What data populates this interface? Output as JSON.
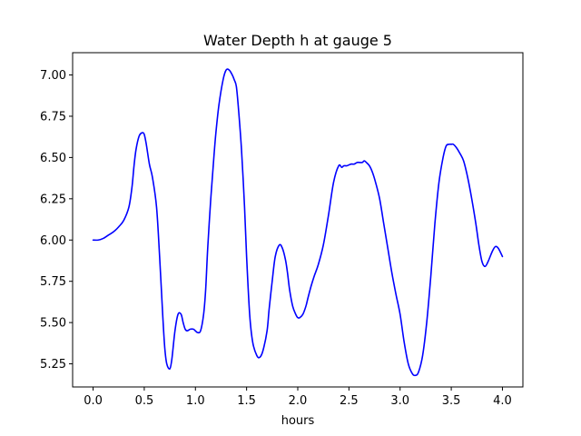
{
  "chart_data": {
    "type": "line",
    "title": "Water Depth h at gauge 5",
    "xlabel": "hours",
    "ylabel": "",
    "xlim": [
      -0.2,
      4.2
    ],
    "ylim": [
      5.11,
      7.135
    ],
    "xticks": [
      0.0,
      0.5,
      1.0,
      1.5,
      2.0,
      2.5,
      3.0,
      3.5,
      4.0
    ],
    "xtick_labels": [
      "0.0",
      "0.5",
      "1.0",
      "1.5",
      "2.0",
      "2.5",
      "3.0",
      "3.5",
      "4.0"
    ],
    "yticks": [
      5.25,
      5.5,
      5.75,
      6.0,
      6.25,
      6.5,
      6.75,
      7.0
    ],
    "ytick_labels": [
      "5.25",
      "5.50",
      "5.75",
      "6.00",
      "6.25",
      "6.50",
      "6.75",
      "7.00"
    ],
    "grid": false,
    "legend": "none",
    "series": [
      {
        "color": "#0000ff",
        "x": [
          0.0,
          0.05,
          0.1,
          0.15,
          0.2,
          0.25,
          0.3,
          0.35,
          0.38,
          0.4,
          0.42,
          0.45,
          0.48,
          0.5,
          0.52,
          0.55,
          0.58,
          0.62,
          0.65,
          0.68,
          0.7,
          0.72,
          0.75,
          0.77,
          0.8,
          0.83,
          0.86,
          0.88,
          0.9,
          0.92,
          0.95,
          0.98,
          1.0,
          1.02,
          1.05,
          1.08,
          1.1,
          1.12,
          1.15,
          1.18,
          1.2,
          1.23,
          1.27,
          1.3,
          1.33,
          1.36,
          1.38,
          1.4,
          1.42,
          1.45,
          1.48,
          1.5,
          1.53,
          1.56,
          1.6,
          1.63,
          1.66,
          1.7,
          1.72,
          1.75,
          1.78,
          1.82,
          1.85,
          1.88,
          1.9,
          1.92,
          1.95,
          1.98,
          2.0,
          2.02,
          2.05,
          2.08,
          2.1,
          2.13,
          2.16,
          2.2,
          2.25,
          2.3,
          2.35,
          2.4,
          2.43,
          2.45,
          2.48,
          2.52,
          2.55,
          2.58,
          2.6,
          2.63,
          2.65,
          2.67,
          2.7,
          2.73,
          2.76,
          2.8,
          2.84,
          2.88,
          2.92,
          2.96,
          3.0,
          3.04,
          3.08,
          3.12,
          3.15,
          3.18,
          3.22,
          3.26,
          3.3,
          3.34,
          3.38,
          3.42,
          3.45,
          3.48,
          3.5,
          3.52,
          3.55,
          3.58,
          3.62,
          3.66,
          3.7,
          3.74,
          3.77,
          3.8,
          3.83,
          3.86,
          3.9,
          3.93,
          3.96,
          4.0
        ],
        "y": [
          6.0,
          6.0,
          6.01,
          6.03,
          6.05,
          6.08,
          6.12,
          6.2,
          6.32,
          6.45,
          6.55,
          6.63,
          6.65,
          6.64,
          6.58,
          6.46,
          6.38,
          6.2,
          5.9,
          5.55,
          5.35,
          5.25,
          5.22,
          5.28,
          5.45,
          5.55,
          5.55,
          5.5,
          5.46,
          5.45,
          5.46,
          5.46,
          5.45,
          5.44,
          5.45,
          5.55,
          5.7,
          5.95,
          6.25,
          6.5,
          6.65,
          6.82,
          6.97,
          7.03,
          7.03,
          7.0,
          6.97,
          6.93,
          6.8,
          6.55,
          6.2,
          5.9,
          5.55,
          5.38,
          5.3,
          5.29,
          5.33,
          5.45,
          5.58,
          5.75,
          5.9,
          5.97,
          5.95,
          5.88,
          5.8,
          5.7,
          5.6,
          5.55,
          5.53,
          5.53,
          5.55,
          5.6,
          5.65,
          5.72,
          5.78,
          5.85,
          5.97,
          6.15,
          6.35,
          6.45,
          6.44,
          6.45,
          6.45,
          6.46,
          6.46,
          6.47,
          6.47,
          6.47,
          6.48,
          6.47,
          6.45,
          6.41,
          6.35,
          6.25,
          6.1,
          5.95,
          5.8,
          5.67,
          5.55,
          5.38,
          5.25,
          5.19,
          5.18,
          5.2,
          5.3,
          5.5,
          5.78,
          6.1,
          6.35,
          6.5,
          6.57,
          6.58,
          6.58,
          6.58,
          6.56,
          6.53,
          6.48,
          6.38,
          6.25,
          6.1,
          5.97,
          5.87,
          5.84,
          5.87,
          5.93,
          5.96,
          5.95,
          5.9
        ]
      }
    ]
  }
}
